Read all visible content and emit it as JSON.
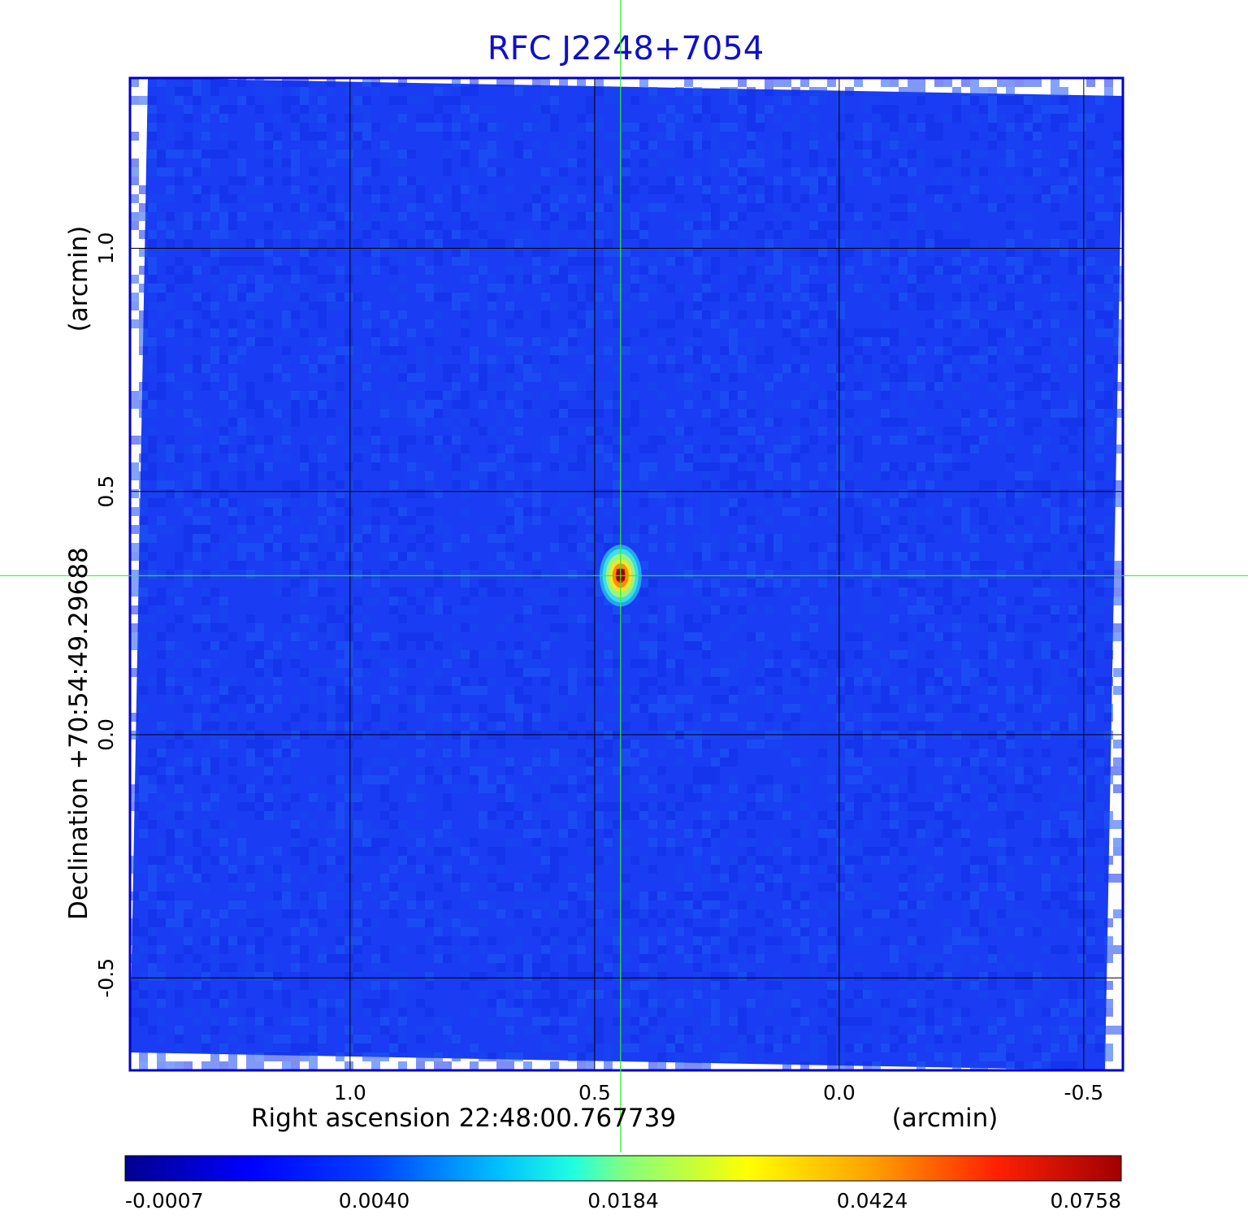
{
  "chart_data": {
    "type": "heatmap",
    "title": "RFC J2248+7054",
    "xlabel": "Right ascension  22:48:00.767739",
    "xlabel_unit": "(arcmin)",
    "ylabel": "Declination  +70:54:49.29688",
    "ylabel_unit": "(arcmin)",
    "xlim": [
      1.45,
      -0.58
    ],
    "ylim": [
      -0.69,
      1.35
    ],
    "x_ticks": [
      1.0,
      0.5,
      0.0,
      -0.5
    ],
    "x_tick_labels": [
      "1.0",
      "0.5",
      "0.0",
      "-0.5"
    ],
    "y_ticks": [
      1.0,
      0.5,
      0.0,
      -0.5
    ],
    "y_tick_labels": [
      "1.0",
      "0.5",
      "0.0",
      "-0.5"
    ],
    "grid": true,
    "crosshair": {
      "x": 0.447,
      "y": 0.327
    },
    "source_peak": {
      "x": 0.447,
      "y": 0.327,
      "value": 0.0758
    },
    "colorbar": {
      "ticks": [
        -0.0007,
        0.004,
        0.0184,
        0.0424,
        0.0758
      ],
      "tick_labels": [
        "-0.0007",
        "0.0040",
        "0.0184",
        "0.0424",
        "0.0758"
      ]
    },
    "colors": {
      "title": "#1010c8",
      "frame": "#0000c8",
      "background_field": "#1a3cf2",
      "grid": "#000000",
      "crosshair": "#33ee33"
    }
  }
}
